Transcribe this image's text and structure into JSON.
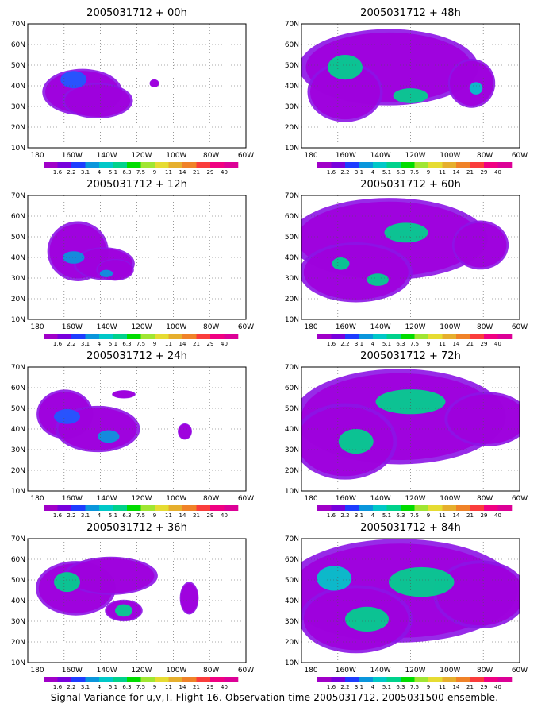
{
  "panels": [
    {
      "id": "p00",
      "title": "2005031712 + 00h"
    },
    {
      "id": "p48",
      "title": "2005031712 + 48h"
    },
    {
      "id": "p12",
      "title": "2005031712 + 12h"
    },
    {
      "id": "p60",
      "title": "2005031712 + 60h"
    },
    {
      "id": "p24",
      "title": "2005031712 + 24h"
    },
    {
      "id": "p72",
      "title": "2005031712 + 72h"
    },
    {
      "id": "p36",
      "title": "2005031712 + 36h"
    },
    {
      "id": "p84",
      "title": "2005031712 + 84h"
    }
  ],
  "axes": {
    "lat_labels": [
      "70N",
      "60N",
      "50N",
      "40N",
      "30N",
      "20N",
      "10N"
    ],
    "lon_labels": [
      "180",
      "160W",
      "140W",
      "120W",
      "100W",
      "80W",
      "60W"
    ]
  },
  "colorbar": {
    "labels": [
      "1.6",
      "2.2",
      "3.1",
      "4",
      "5.1",
      "6.3",
      "7.5",
      "9",
      "11",
      "14",
      "21",
      "29",
      "40"
    ],
    "colors": [
      "#a000c8",
      "#7800dc",
      "#1e3cff",
      "#0a96dc",
      "#00c8c8",
      "#00d28c",
      "#00dc00",
      "#a0e632",
      "#e6dc32",
      "#e6af2d",
      "#f08228",
      "#fa3c3c",
      "#f00082",
      "#dc0096"
    ]
  },
  "caption": "Signal Variance for u,v,T. Flight 16. Observation time 2005031712. 2005031500 ensemble."
}
